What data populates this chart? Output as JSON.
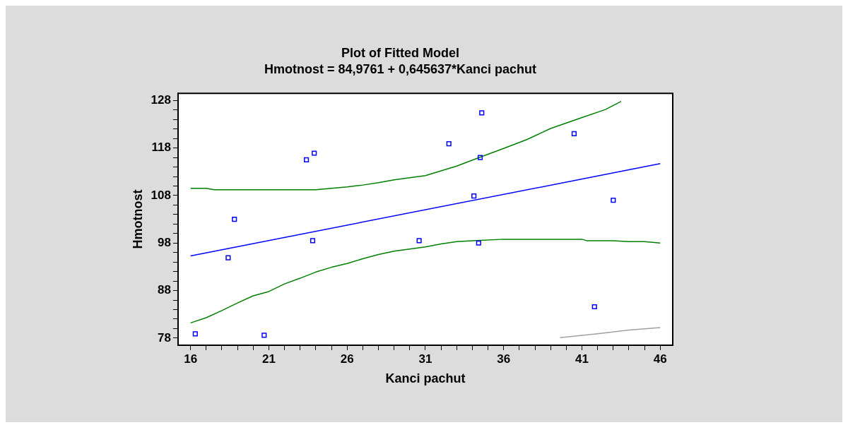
{
  "chart_data": {
    "type": "scatter",
    "title": "Plot of Fitted Model",
    "subtitle": "Hmotnost = 84,9761 + 0,645637*Kanci pachut",
    "xlabel": "Kanci pachut",
    "ylabel": "Hmotnost",
    "line_style": "solid",
    "xlim": [
      15.2,
      46.8
    ],
    "ylim": [
      76.5,
      129.5
    ],
    "xticks": [
      16,
      {
        "value": 17,
        "label": null
      },
      {
        "value": 18,
        "label": null
      },
      {
        "value": 19,
        "label": null
      },
      {
        "value": 20,
        "label": null
      },
      21,
      {
        "value": 22,
        "label": null
      },
      {
        "value": 23,
        "label": null
      },
      {
        "value": 24,
        "label": null
      },
      {
        "value": 25,
        "label": null
      },
      26,
      {
        "value": 27,
        "label": null
      },
      {
        "value": 28,
        "label": null
      },
      {
        "value": 29,
        "label": null
      },
      {
        "value": 30,
        "label": null
      },
      31,
      {
        "value": 32,
        "label": null
      },
      {
        "value": 33,
        "label": null
      },
      {
        "value": 34,
        "label": null
      },
      {
        "value": 35,
        "label": null
      },
      36,
      {
        "value": 37,
        "label": null
      },
      {
        "value": 38,
        "label": null
      },
      {
        "value": 39,
        "label": null
      },
      {
        "value": 40,
        "label": null
      },
      41,
      {
        "value": 42,
        "label": null
      },
      {
        "value": 43,
        "label": null
      },
      {
        "value": 44,
        "label": null
      },
      {
        "value": 45,
        "label": null
      },
      46
    ],
    "yticks": [
      78,
      {
        "value": 80,
        "label": null
      },
      {
        "value": 82,
        "label": null
      },
      {
        "value": 84,
        "label": null
      },
      {
        "value": 86,
        "label": null
      },
      88,
      {
        "value": 90,
        "label": null
      },
      {
        "value": 92,
        "label": null
      },
      {
        "value": 94,
        "label": null
      },
      {
        "value": 96,
        "label": null
      },
      98,
      {
        "value": 100,
        "label": null
      },
      {
        "value": 102,
        "label": null
      },
      {
        "value": 104,
        "label": null
      },
      {
        "value": 106,
        "label": null
      },
      108,
      {
        "value": 110,
        "label": null
      },
      {
        "value": 112,
        "label": null
      },
      {
        "value": 114,
        "label": null
      },
      {
        "value": 116,
        "label": null
      },
      118,
      {
        "value": 120,
        "label": null
      },
      {
        "value": 122,
        "label": null
      },
      {
        "value": 124,
        "label": null
      },
      {
        "value": 126,
        "label": null
      },
      128
    ],
    "series": [
      {
        "marker": "square",
        "color": "#0000ff",
        "x": [
          16.3,
          18.4,
          18.8,
          20.7,
          23.4,
          23.9,
          23.8,
          30.6,
          32.5,
          34.6,
          34.5,
          34.1,
          34.4,
          40.5,
          43.0,
          41.8
        ],
        "values": [
          78.9,
          94.9,
          103.0,
          78.6,
          115.5,
          116.9,
          98.5,
          98.5,
          118.9,
          125.4,
          116.0,
          107.9,
          98.0,
          121.0,
          107.0,
          84.6
        ]
      },
      {
        "type": "line",
        "color": "#0000ff",
        "x": [
          16,
          46
        ],
        "values": [
          95.3,
          114.7
        ]
      },
      {
        "type": "line",
        "color": "#008000",
        "x": [
          16,
          17,
          17.5,
          24,
          25,
          26,
          27,
          28,
          29,
          31,
          33,
          34.6,
          36,
          37.5,
          39,
          41,
          42.5,
          43.5
        ],
        "values": [
          109.5,
          109.5,
          109.2,
          109.2,
          109.5,
          109.8,
          110.2,
          110.7,
          111.3,
          112.2,
          114.2,
          116.2,
          117.9,
          119.8,
          122.1,
          124.4,
          126.1,
          127.8
        ]
      },
      {
        "type": "line",
        "color": "#008000",
        "x": [
          16,
          17,
          18,
          19,
          20,
          21,
          22,
          23,
          24,
          25,
          26,
          27,
          28,
          29,
          31,
          32,
          33,
          34,
          36,
          41,
          41.3,
          43,
          44,
          45,
          46
        ],
        "values": [
          81.2,
          82.3,
          83.8,
          85.4,
          86.9,
          87.8,
          89.4,
          90.6,
          91.9,
          92.9,
          93.7,
          94.7,
          95.6,
          96.3,
          97.2,
          97.8,
          98.3,
          98.5,
          98.8,
          98.8,
          98.5,
          98.5,
          98.3,
          98.3,
          98.0
        ]
      },
      {
        "type": "line",
        "color": "#a0a0a0",
        "x": [
          39.6,
          42,
          44,
          46
        ],
        "values": [
          78.1,
          78.9,
          79.7,
          80.2
        ]
      }
    ]
  }
}
